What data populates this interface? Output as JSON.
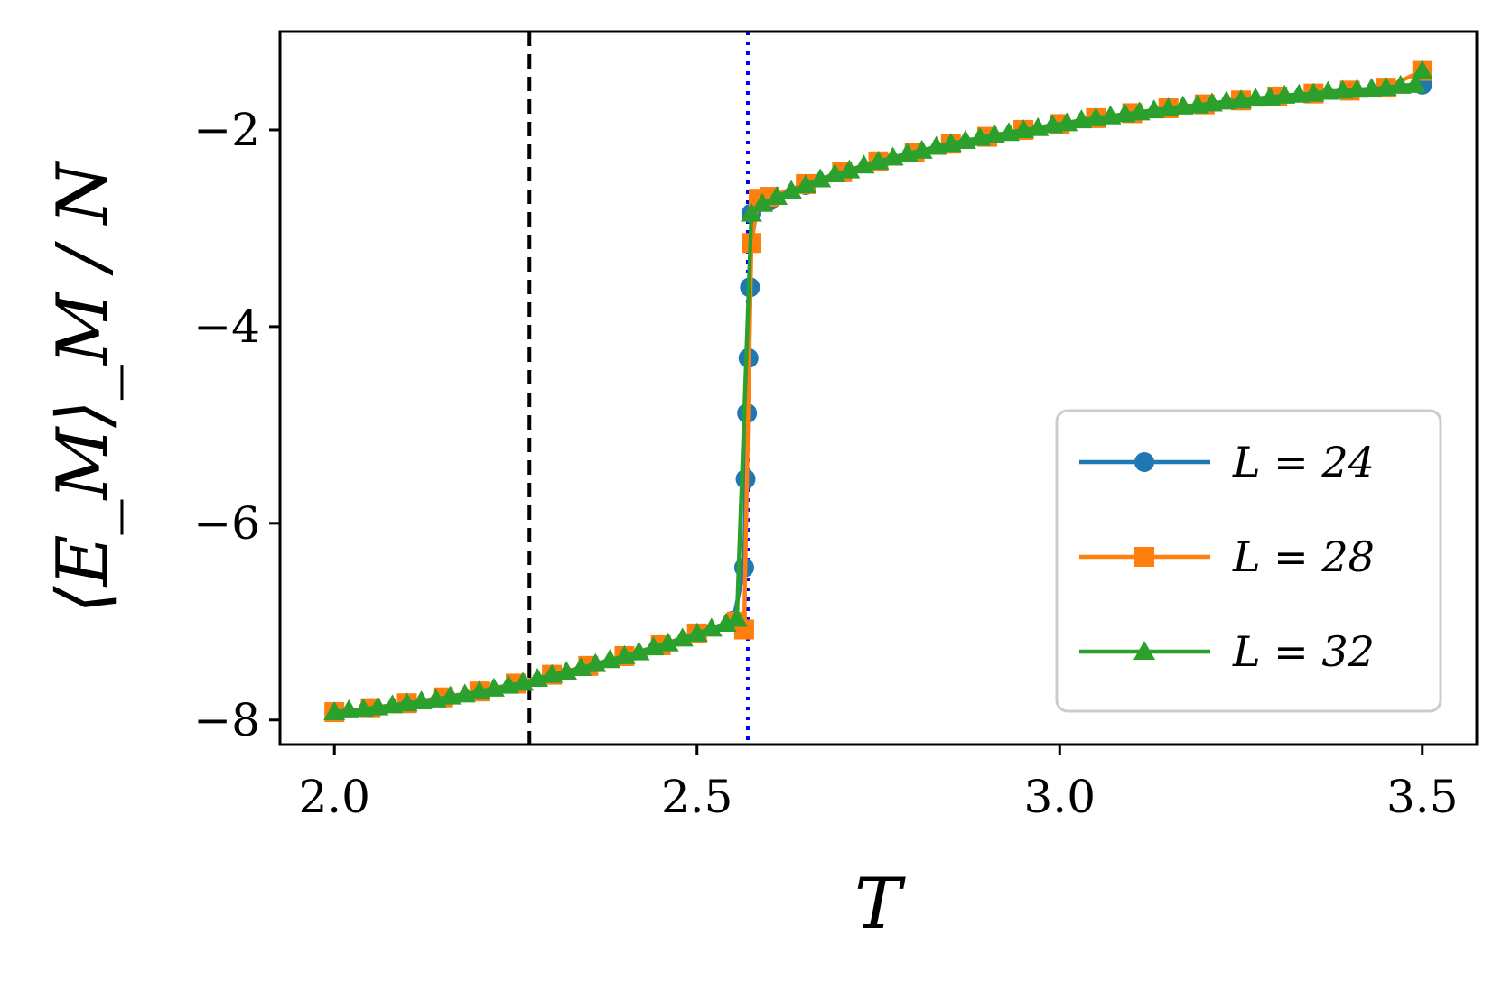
{
  "chart_data": {
    "type": "line",
    "title": "",
    "xlabel": "T",
    "ylabel": "⟨E_M⟩_M / N",
    "xlim": [
      1.925,
      3.575
    ],
    "ylim": [
      -8.25,
      -1.0
    ],
    "x_ticks": [
      2.0,
      2.5,
      3.0,
      3.5
    ],
    "x_tick_labels": [
      "2.0",
      "2.5",
      "3.0",
      "3.5"
    ],
    "y_ticks": [
      -8,
      -6,
      -4,
      -2
    ],
    "y_tick_labels": [
      "−8",
      "−6",
      "−4",
      "−2"
    ],
    "grid": false,
    "legend_position": "lower-right",
    "reference_lines": [
      {
        "orientation": "vertical",
        "x": 2.269,
        "style": "dashed",
        "color": "#000000"
      },
      {
        "orientation": "vertical",
        "x": 2.57,
        "style": "dotted",
        "color": "#0000ff"
      }
    ],
    "series": [
      {
        "name": "L = 24",
        "color": "#1f77b4",
        "marker": "circle",
        "points": [
          [
            2.0,
            -7.92
          ],
          [
            2.05,
            -7.88
          ],
          [
            2.1,
            -7.83
          ],
          [
            2.15,
            -7.77
          ],
          [
            2.2,
            -7.71
          ],
          [
            2.25,
            -7.63
          ],
          [
            2.3,
            -7.54
          ],
          [
            2.35,
            -7.45
          ],
          [
            2.4,
            -7.35
          ],
          [
            2.45,
            -7.24
          ],
          [
            2.5,
            -7.12
          ],
          [
            2.55,
            -6.99
          ],
          [
            2.565,
            -6.45
          ],
          [
            2.567,
            -5.55
          ],
          [
            2.569,
            -4.88
          ],
          [
            2.571,
            -4.32
          ],
          [
            2.573,
            -3.6
          ],
          [
            2.575,
            -2.85
          ],
          [
            2.6,
            -2.72
          ],
          [
            2.65,
            -2.56
          ],
          [
            2.7,
            -2.43
          ],
          [
            2.75,
            -2.32
          ],
          [
            2.8,
            -2.23
          ],
          [
            2.85,
            -2.14
          ],
          [
            2.9,
            -2.07
          ],
          [
            2.95,
            -2.0
          ],
          [
            3.0,
            -1.94
          ],
          [
            3.05,
            -1.88
          ],
          [
            3.1,
            -1.83
          ],
          [
            3.15,
            -1.78
          ],
          [
            3.2,
            -1.74
          ],
          [
            3.25,
            -1.7
          ],
          [
            3.3,
            -1.66
          ],
          [
            3.35,
            -1.63
          ],
          [
            3.4,
            -1.6
          ],
          [
            3.45,
            -1.57
          ],
          [
            3.5,
            -1.54
          ]
        ]
      },
      {
        "name": "L = 28",
        "color": "#ff7f0e",
        "marker": "square",
        "points": [
          [
            2.0,
            -7.92
          ],
          [
            2.05,
            -7.88
          ],
          [
            2.1,
            -7.83
          ],
          [
            2.15,
            -7.77
          ],
          [
            2.2,
            -7.71
          ],
          [
            2.25,
            -7.63
          ],
          [
            2.3,
            -7.54
          ],
          [
            2.35,
            -7.45
          ],
          [
            2.4,
            -7.35
          ],
          [
            2.45,
            -7.24
          ],
          [
            2.5,
            -7.12
          ],
          [
            2.555,
            -7.0
          ],
          [
            2.565,
            -7.08
          ],
          [
            2.575,
            -3.15
          ],
          [
            2.585,
            -2.7
          ],
          [
            2.6,
            -2.68
          ],
          [
            2.65,
            -2.55
          ],
          [
            2.7,
            -2.43
          ],
          [
            2.75,
            -2.32
          ],
          [
            2.8,
            -2.23
          ],
          [
            2.85,
            -2.14
          ],
          [
            2.9,
            -2.07
          ],
          [
            2.95,
            -2.0
          ],
          [
            3.0,
            -1.94
          ],
          [
            3.05,
            -1.88
          ],
          [
            3.1,
            -1.83
          ],
          [
            3.15,
            -1.78
          ],
          [
            3.2,
            -1.74
          ],
          [
            3.25,
            -1.7
          ],
          [
            3.3,
            -1.66
          ],
          [
            3.35,
            -1.63
          ],
          [
            3.4,
            -1.6
          ],
          [
            3.45,
            -1.57
          ],
          [
            3.5,
            -1.4
          ]
        ]
      },
      {
        "name": "L = 32",
        "color": "#2ca02c",
        "marker": "triangle",
        "points": [
          [
            2.0,
            -7.92
          ],
          [
            2.02,
            -7.9
          ],
          [
            2.04,
            -7.89
          ],
          [
            2.06,
            -7.87
          ],
          [
            2.08,
            -7.85
          ],
          [
            2.1,
            -7.83
          ],
          [
            2.12,
            -7.81
          ],
          [
            2.14,
            -7.79
          ],
          [
            2.16,
            -7.76
          ],
          [
            2.18,
            -7.74
          ],
          [
            2.2,
            -7.71
          ],
          [
            2.22,
            -7.68
          ],
          [
            2.24,
            -7.65
          ],
          [
            2.26,
            -7.62
          ],
          [
            2.28,
            -7.58
          ],
          [
            2.3,
            -7.54
          ],
          [
            2.32,
            -7.51
          ],
          [
            2.34,
            -7.47
          ],
          [
            2.36,
            -7.43
          ],
          [
            2.38,
            -7.39
          ],
          [
            2.4,
            -7.35
          ],
          [
            2.42,
            -7.31
          ],
          [
            2.44,
            -7.26
          ],
          [
            2.46,
            -7.22
          ],
          [
            2.48,
            -7.17
          ],
          [
            2.5,
            -7.12
          ],
          [
            2.52,
            -7.07
          ],
          [
            2.54,
            -7.02
          ],
          [
            2.555,
            -6.97
          ],
          [
            2.575,
            -2.85
          ],
          [
            2.59,
            -2.75
          ],
          [
            2.61,
            -2.68
          ],
          [
            2.63,
            -2.62
          ],
          [
            2.65,
            -2.56
          ],
          [
            2.67,
            -2.5
          ],
          [
            2.69,
            -2.45
          ],
          [
            2.71,
            -2.41
          ],
          [
            2.73,
            -2.36
          ],
          [
            2.75,
            -2.32
          ],
          [
            2.77,
            -2.28
          ],
          [
            2.79,
            -2.24
          ],
          [
            2.81,
            -2.21
          ],
          [
            2.83,
            -2.17
          ],
          [
            2.85,
            -2.14
          ],
          [
            2.87,
            -2.11
          ],
          [
            2.89,
            -2.08
          ],
          [
            2.91,
            -2.05
          ],
          [
            2.93,
            -2.03
          ],
          [
            2.95,
            -2.0
          ],
          [
            2.97,
            -1.98
          ],
          [
            2.99,
            -1.95
          ],
          [
            3.01,
            -1.93
          ],
          [
            3.03,
            -1.9
          ],
          [
            3.05,
            -1.88
          ],
          [
            3.07,
            -1.86
          ],
          [
            3.09,
            -1.84
          ],
          [
            3.11,
            -1.82
          ],
          [
            3.13,
            -1.8
          ],
          [
            3.15,
            -1.78
          ],
          [
            3.17,
            -1.76
          ],
          [
            3.19,
            -1.75
          ],
          [
            3.21,
            -1.73
          ],
          [
            3.23,
            -1.71
          ],
          [
            3.25,
            -1.7
          ],
          [
            3.27,
            -1.68
          ],
          [
            3.29,
            -1.67
          ],
          [
            3.31,
            -1.65
          ],
          [
            3.33,
            -1.64
          ],
          [
            3.35,
            -1.63
          ],
          [
            3.37,
            -1.61
          ],
          [
            3.39,
            -1.6
          ],
          [
            3.41,
            -1.59
          ],
          [
            3.43,
            -1.58
          ],
          [
            3.45,
            -1.57
          ],
          [
            3.47,
            -1.55
          ],
          [
            3.49,
            -1.54
          ],
          [
            3.5,
            -1.4
          ]
        ]
      }
    ]
  }
}
